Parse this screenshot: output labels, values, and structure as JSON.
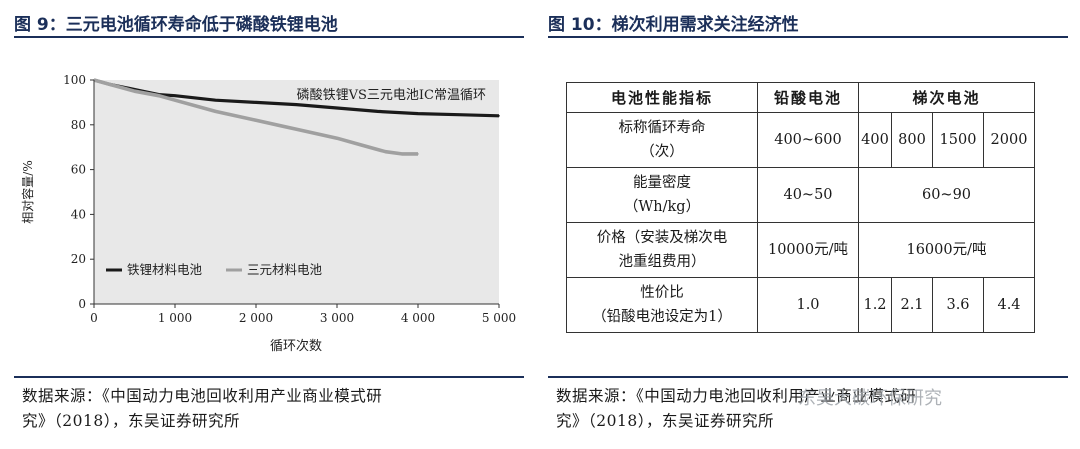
{
  "left": {
    "figure_title": "图 9：三元电池循环寿命低于磷酸铁锂电池",
    "source": [
      "数据来源：《中国动力电池回收利用产业商业模式研",
      "究》（2018），东吴证券研究所"
    ]
  },
  "right": {
    "figure_title": "图 10：梯次利用需求关注经济性",
    "source": [
      "数据来源：《中国动力电池回收利用产业商业模式研",
      "究》（2018），东吴证券研究所"
    ],
    "watermark": "东吴大碳环保研究",
    "table": {
      "headers": [
        "电池性能指标",
        "铅酸电池",
        "梯次电池"
      ],
      "rows": [
        {
          "metric": [
            "标称循环寿命",
            "（次）"
          ],
          "lead_acid": "400~600",
          "cascade": [
            "400",
            "800",
            "1500",
            "2000"
          ]
        },
        {
          "metric": [
            "能量密度",
            "（Wh/kg）"
          ],
          "lead_acid": "40~50",
          "cascade_merged": "60~90"
        },
        {
          "metric": [
            "价格（安装及梯次电",
            "池重组费用）"
          ],
          "lead_acid": "10000元/吨",
          "cascade_merged": "16000元/吨"
        },
        {
          "metric": [
            "性价比",
            "（铅酸电池设定为1）"
          ],
          "lead_acid": "1.0",
          "cascade": [
            "1.2",
            "2.1",
            "3.6",
            "4.4"
          ]
        }
      ]
    }
  },
  "chart_data": {
    "type": "line",
    "title": "磷酸铁锂VS三元电池IC常温循环",
    "xlabel": "循环次数",
    "ylabel": "相对容量/%",
    "xlim": [
      0,
      5000
    ],
    "ylim": [
      0,
      100
    ],
    "xticks": [
      "0",
      "1 000",
      "2 000",
      "3 000",
      "4 000",
      "5 000"
    ],
    "yticks": [
      "0",
      "20",
      "40",
      "60",
      "80",
      "100"
    ],
    "legend_position": "bottom-left",
    "series": [
      {
        "name": "铁锂材料电池",
        "color": "#1a1a1a",
        "x": [
          0,
          200,
          400,
          600,
          800,
          1000,
          1500,
          2000,
          2500,
          3000,
          3500,
          4000,
          4500,
          5000
        ],
        "y": [
          100,
          98,
          96.5,
          95,
          93.5,
          93,
          91,
          90,
          89,
          87.5,
          86,
          85,
          84.5,
          84
        ]
      },
      {
        "name": "三元材料电池",
        "color": "#a0a0a0",
        "x": [
          0,
          200,
          500,
          800,
          1000,
          1500,
          2000,
          2500,
          3000,
          3300,
          3600,
          3800,
          4000
        ],
        "y": [
          100,
          98,
          95,
          93,
          91,
          86,
          82,
          78,
          74,
          71,
          68,
          67,
          67
        ]
      }
    ]
  }
}
